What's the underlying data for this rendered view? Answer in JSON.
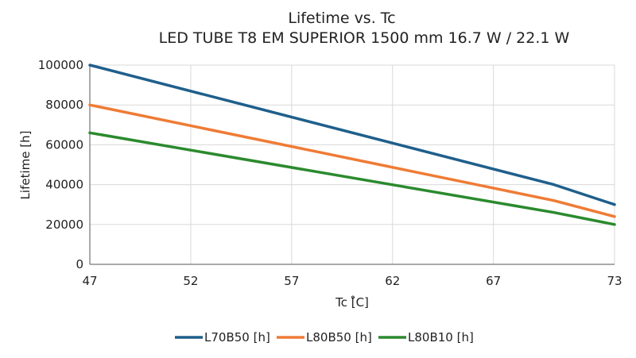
{
  "chart_data": {
    "type": "line",
    "title": "Lifetime vs. Tc",
    "subtitle": "LED TUBE T8 EM SUPERIOR 1500 mm 16.7 W / 22.1 W",
    "xlabel": "Tc [̊C]",
    "ylabel": "Lifetime [h]",
    "xlim": [
      47,
      73
    ],
    "ylim": [
      0,
      100000
    ],
    "xticks": [
      47,
      52,
      57,
      62,
      67,
      73
    ],
    "yticks": [
      0,
      20000,
      40000,
      60000,
      80000,
      100000
    ],
    "grid": true,
    "legend_position": "bottom",
    "series": [
      {
        "name": "L70B50 [h]",
        "color": "#1f5f8b",
        "x": [
          47,
          70,
          73
        ],
        "y": [
          100000,
          40000,
          30000
        ]
      },
      {
        "name": "L80B50 [h]",
        "color": "#ef7b35",
        "x": [
          47,
          70,
          73
        ],
        "y": [
          80000,
          32000,
          24000
        ]
      },
      {
        "name": "L80B10 [h]",
        "color": "#2b8a2e",
        "x": [
          47,
          70,
          73
        ],
        "y": [
          66000,
          26000,
          20000
        ]
      }
    ]
  }
}
